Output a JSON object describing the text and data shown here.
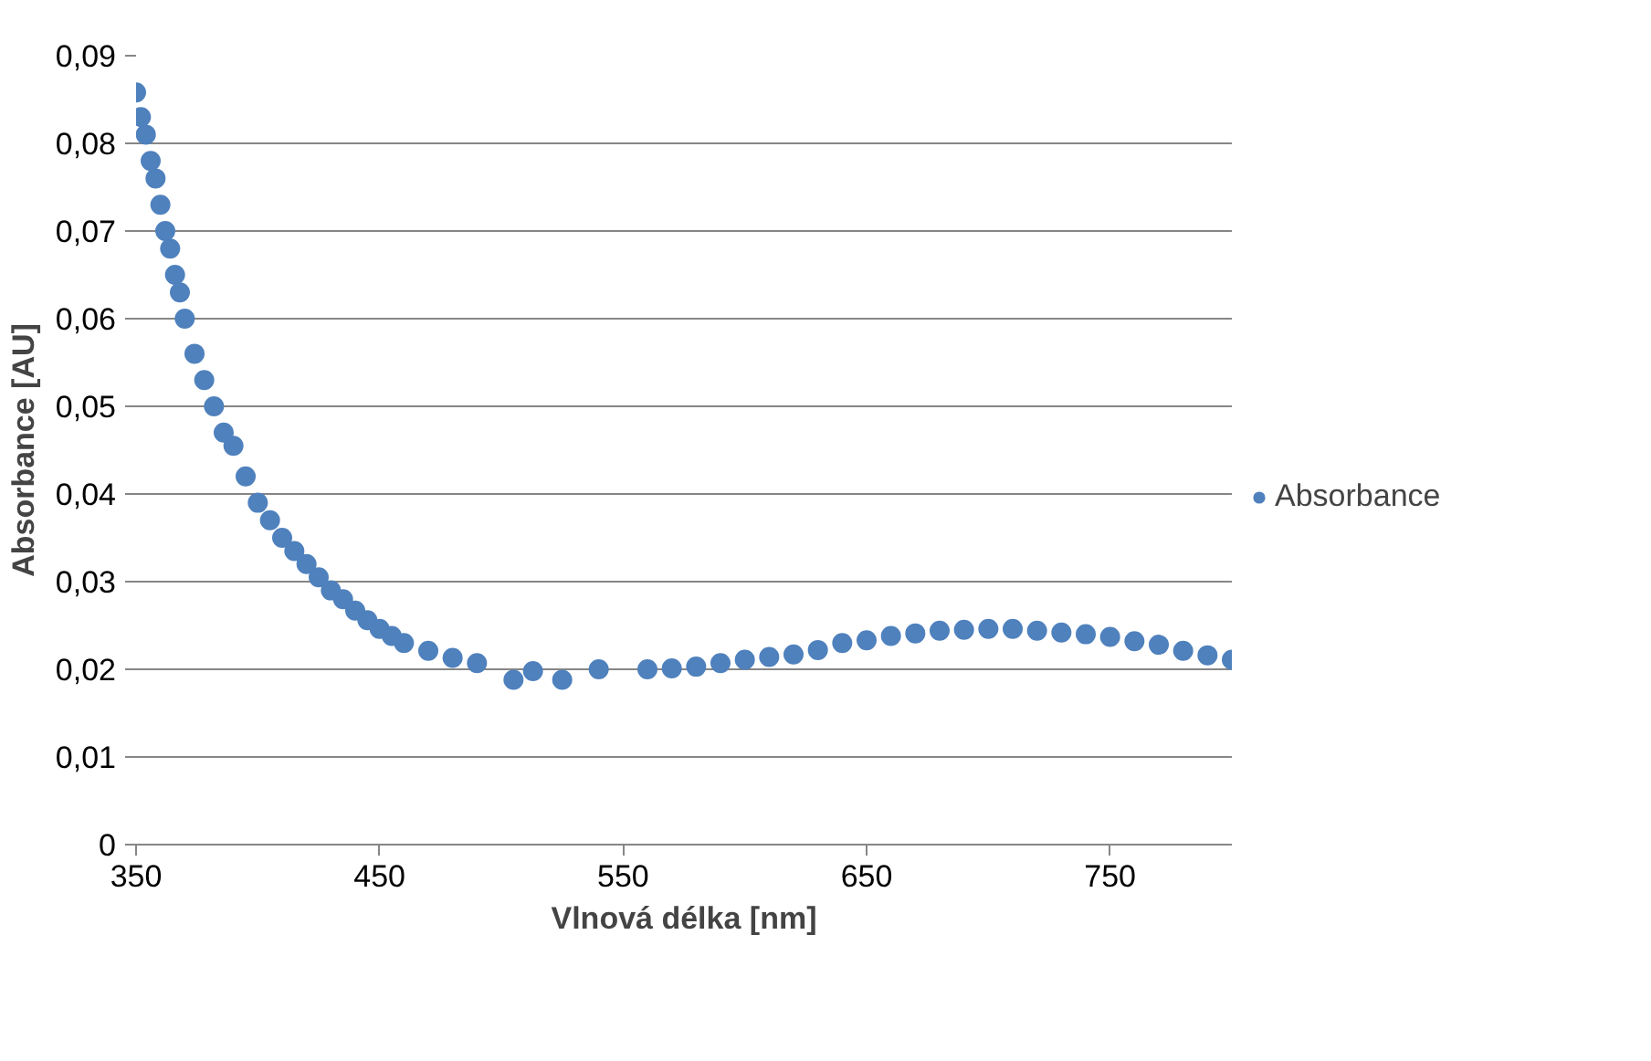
{
  "chart_data": {
    "type": "scatter",
    "xlabel": "Vlnová délka [nm]",
    "ylabel": "Absorbance [AU]",
    "xlim": [
      350,
      800
    ],
    "xticks": [
      350,
      450,
      550,
      650,
      750
    ],
    "ylim": [
      0,
      0.09
    ],
    "yticks": [
      0,
      {
        "value": 0.01,
        "label": "0,01"
      },
      {
        "value": 0.02,
        "label": "0,02"
      },
      {
        "value": 0.03,
        "label": "0,03"
      },
      {
        "value": 0.04,
        "label": "0,04"
      },
      {
        "value": 0.05,
        "label": "0,05"
      },
      {
        "value": 0.06,
        "label": "0,06"
      },
      {
        "value": 0.07,
        "label": "0,07"
      },
      {
        "value": 0.08,
        "label": "0,08"
      },
      {
        "value": 0.09,
        "label": "0,09"
      }
    ],
    "grid": "y",
    "legend": "right",
    "marker": "circle",
    "series": [
      {
        "name": "Absorbance",
        "color": "#4f81bd",
        "x": [
          350,
          352,
          354,
          356,
          358,
          360,
          362,
          364,
          366,
          368,
          370,
          374,
          378,
          382,
          386,
          390,
          395,
          400,
          405,
          410,
          415,
          420,
          425,
          430,
          435,
          440,
          445,
          450,
          455,
          460,
          470,
          480,
          490,
          505,
          513,
          525,
          540,
          560,
          570,
          580,
          590,
          600,
          610,
          620,
          630,
          640,
          650,
          660,
          670,
          680,
          690,
          700,
          710,
          720,
          730,
          740,
          750,
          760,
          770,
          780,
          790,
          800
        ],
        "values": [
          0.0858,
          0.083,
          0.081,
          0.078,
          0.076,
          0.073,
          0.07,
          0.068,
          0.065,
          0.063,
          0.06,
          0.056,
          0.053,
          0.05,
          0.047,
          0.0455,
          0.042,
          0.039,
          0.037,
          0.035,
          0.0335,
          0.032,
          0.0305,
          0.029,
          0.028,
          0.0267,
          0.0256,
          0.0246,
          0.0238,
          0.023,
          0.0221,
          0.0213,
          0.0207,
          0.0188,
          0.0198,
          0.0188,
          0.02,
          0.02,
          0.0201,
          0.0203,
          0.0207,
          0.0211,
          0.0214,
          0.0217,
          0.0222,
          0.023,
          0.0233,
          0.0238,
          0.0241,
          0.0244,
          0.0245,
          0.0246,
          0.0246,
          0.0244,
          0.0242,
          0.024,
          0.0237,
          0.0232,
          0.0228,
          0.0221,
          0.0216,
          0.0211
        ]
      }
    ]
  }
}
